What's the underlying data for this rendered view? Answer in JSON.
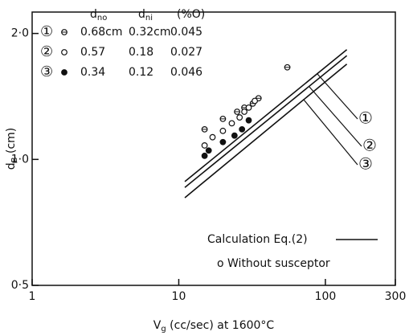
{
  "chart_data": {
    "type": "scatter",
    "xlog": true,
    "ylog": true,
    "xlim": [
      1,
      300
    ],
    "ylim": [
      0.5,
      2.25
    ],
    "xticks": [
      1,
      10,
      100,
      300
    ],
    "yticks": [
      {
        "value": 0.5,
        "label": "0·5"
      },
      {
        "value": 1.0,
        "label": "1·0"
      },
      {
        "value": 2.0,
        "label": "2·0"
      }
    ],
    "xlabel": {
      "main": "V",
      "sub": "g",
      "rest": " (cc/sec) at 1600°C"
    },
    "ylabel": {
      "main": "d",
      "sub": "B",
      "rest": " (cm)"
    },
    "table": {
      "columns": [
        {
          "main": "d",
          "sub": "no"
        },
        {
          "main": "d",
          "sub": "ni"
        },
        {
          "main": "(%O)",
          "sub": ""
        }
      ],
      "rows": [
        {
          "label": "①",
          "values": [
            "0.68cm",
            "0.32cm",
            "0.045"
          ]
        },
        {
          "label": "②",
          "values": [
            "0.57",
            "0.18",
            "0.027"
          ]
        },
        {
          "label": "③",
          "values": [
            "0.34",
            "0.12",
            "0.046"
          ]
        }
      ]
    },
    "series": [
      {
        "marker": "crossed",
        "x": [
          15,
          20,
          25,
          28,
          32,
          35,
          55
        ],
        "values": [
          1.18,
          1.25,
          1.3,
          1.33,
          1.36,
          1.4,
          1.66
        ]
      },
      {
        "marker": "open",
        "x": [
          15,
          17,
          20,
          23,
          26,
          28,
          30,
          33
        ],
        "values": [
          1.08,
          1.13,
          1.17,
          1.22,
          1.26,
          1.3,
          1.33,
          1.38
        ]
      },
      {
        "marker": "filled",
        "x": [
          15,
          16,
          20,
          24,
          27,
          30
        ],
        "values": [
          1.02,
          1.05,
          1.1,
          1.14,
          1.18,
          1.24
        ]
      }
    ],
    "lines": [
      {
        "x": [
          11,
          140
        ],
        "values": [
          0.885,
          1.83
        ]
      },
      {
        "x": [
          11,
          140
        ],
        "values": [
          0.857,
          1.77
        ]
      },
      {
        "x": [
          11,
          140
        ],
        "values": [
          0.81,
          1.69
        ]
      }
    ],
    "callouts": [
      "①",
      "②",
      "③"
    ],
    "annotations": [
      "Calculation Eq.(2)",
      "o  Without susceptor"
    ]
  }
}
